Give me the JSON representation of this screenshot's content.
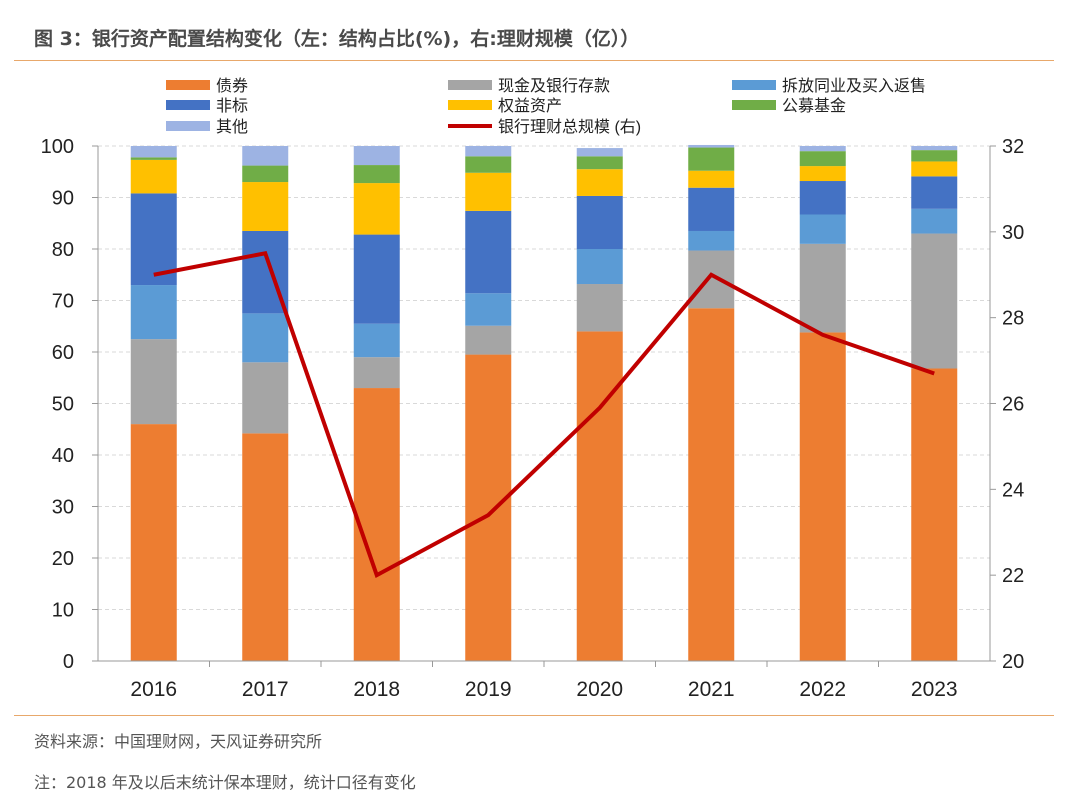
{
  "header": {
    "title": "图 3：银行资产配置结构变化（左：结构占比(%)，右:理财规模（亿））"
  },
  "footer": {
    "source": "资料来源：中国理财网，天风证券研究所",
    "note": "注：2018 年及以后末统计保本理财，统计口径有变化"
  },
  "colors": {
    "bonds": "#ED7D31",
    "cash": "#A5A5A5",
    "interbank": "#5B9BD5",
    "nonstandard": "#4472C4",
    "equity": "#FFC000",
    "funds": "#70AD47",
    "other": "#9DB3E3",
    "total": "#C00000",
    "axis": "#999999",
    "grid": "#d9d9d9"
  },
  "chart_data": {
    "type": "bar",
    "stacked": true,
    "categories": [
      "2016",
      "2017",
      "2018",
      "2019",
      "2020",
      "2021",
      "2022",
      "2023"
    ],
    "series": [
      {
        "name": "债券",
        "key": "bonds",
        "values": [
          46,
          44.2,
          53,
          59.5,
          64,
          68.5,
          63.8,
          56.8
        ]
      },
      {
        "name": "现金及银行存款",
        "key": "cash",
        "values": [
          16.5,
          13.8,
          6,
          5.6,
          9.2,
          11.2,
          17.2,
          26.2
        ]
      },
      {
        "name": "拆放同业及买入返售",
        "key": "interbank",
        "values": [
          10.5,
          9.5,
          6.5,
          6.3,
          6.8,
          3.8,
          5.7,
          4.8
        ]
      },
      {
        "name": "非标",
        "key": "nonstandard",
        "values": [
          17.8,
          16,
          17.3,
          16,
          10.3,
          8.4,
          6.5,
          6.3
        ]
      },
      {
        "name": "权益资产",
        "key": "equity",
        "values": [
          6.5,
          9.5,
          10,
          7.4,
          5.2,
          3.3,
          2.9,
          2.9
        ]
      },
      {
        "name": "公募基金",
        "key": "funds",
        "values": [
          0.5,
          3.2,
          3.5,
          3.2,
          2.5,
          4.5,
          2.9,
          2.2
        ]
      },
      {
        "name": "其他",
        "key": "other",
        "values": [
          2.2,
          3.8,
          3.7,
          2.0,
          1.6,
          0.5,
          1.0,
          0.8
        ]
      }
    ],
    "line": {
      "name": "银行理财总规模 (右)",
      "key": "total",
      "values": [
        29,
        29.5,
        22.0,
        23.4,
        25.9,
        29.0,
        27.6,
        26.7
      ]
    },
    "left_axis": {
      "min": 0,
      "max": 100,
      "step": 10,
      "ticks": [
        "0",
        "10",
        "20",
        "30",
        "40",
        "50",
        "60",
        "70",
        "80",
        "90",
        "100"
      ]
    },
    "right_axis": {
      "min": 20,
      "max": 32,
      "step": 2,
      "ticks": [
        "20",
        "22",
        "24",
        "26",
        "28",
        "30",
        "32"
      ]
    },
    "legend": "top",
    "grid": true
  }
}
